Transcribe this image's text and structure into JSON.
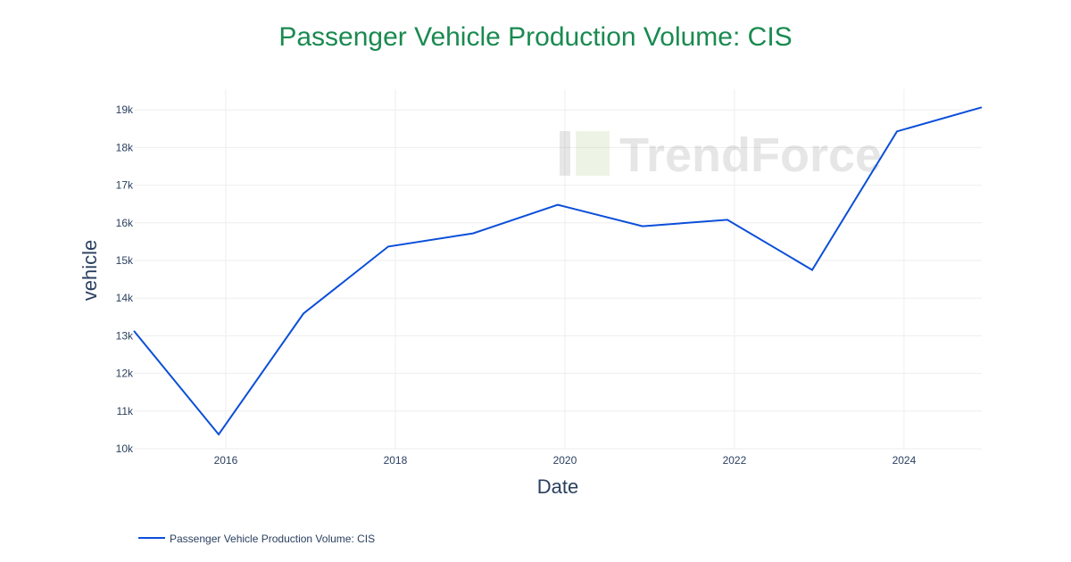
{
  "chart_data": {
    "type": "line",
    "title": "Passenger Vehicle Production Volume: CIS",
    "xlabel": "Date",
    "ylabel": "vehicle",
    "x": [
      "2014-12",
      "2015-12",
      "2016-12",
      "2017-12",
      "2018-12",
      "2019-12",
      "2020-12",
      "2021-12",
      "2022-12",
      "2023-12",
      "2024-12"
    ],
    "series": [
      {
        "name": "Passenger Vehicle Production Volume: CIS",
        "values": [
          13130,
          10380,
          13590,
          15370,
          15720,
          16480,
          15910,
          16080,
          14750,
          18430,
          19070
        ]
      }
    ],
    "xlim": [
      "2014-12",
      "2024-12"
    ],
    "ylim": [
      10000,
      19550
    ],
    "x_ticks": [
      "2016",
      "2018",
      "2020",
      "2022",
      "2024"
    ],
    "y_ticks": [
      "10k",
      "11k",
      "12k",
      "13k",
      "14k",
      "15k",
      "16k",
      "17k",
      "18k",
      "19k"
    ],
    "grid": true,
    "legend_position": "bottom-left",
    "colors": {
      "line": "#0b4fd9",
      "title": "#1a8a50",
      "grid": "#eeeeee",
      "text": "#2a3f5f"
    },
    "watermark": "TrendForce"
  }
}
